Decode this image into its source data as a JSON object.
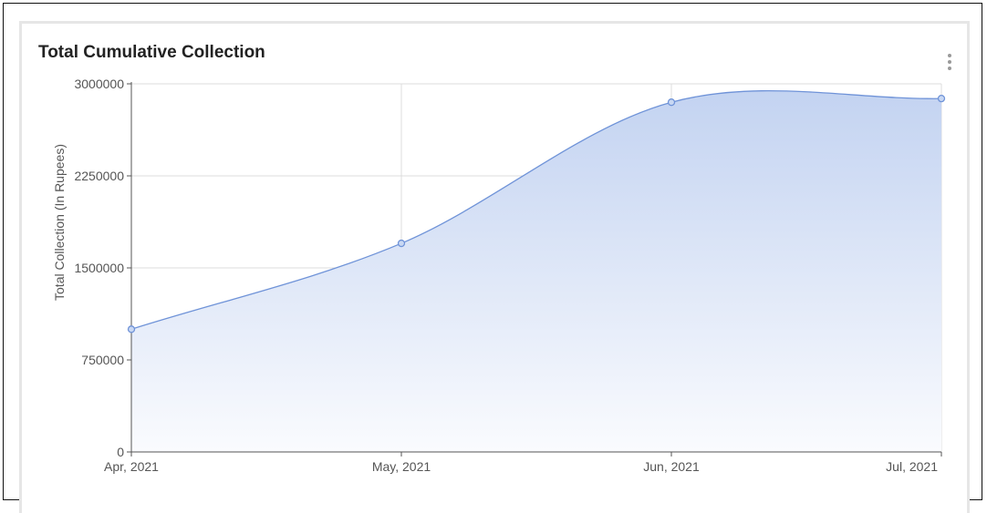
{
  "card": {
    "title": "Total Cumulative Collection",
    "menu_icon": "kebab-menu-icon"
  },
  "chart_data": {
    "type": "area",
    "title": "Total Cumulative Collection",
    "xlabel": "",
    "ylabel": "Total Collection (In Rupees)",
    "categories": [
      "Apr, 2021",
      "May, 2021",
      "Jun, 2021",
      "Jul, 2021"
    ],
    "series": [
      {
        "values": [
          1000000,
          1700000,
          2850000,
          2880000
        ]
      }
    ],
    "y_ticks": [
      "0",
      "750000",
      "1500000",
      "2250000",
      "3000000"
    ],
    "ylim": [
      0,
      3000000
    ],
    "grid": true,
    "legend": "none",
    "colors": {
      "line": "#6f93d8",
      "fill_top": "#c3d3f1",
      "fill_bottom": "#fafbfe",
      "grid": "#dcdcdc",
      "axis": "#555555"
    }
  }
}
